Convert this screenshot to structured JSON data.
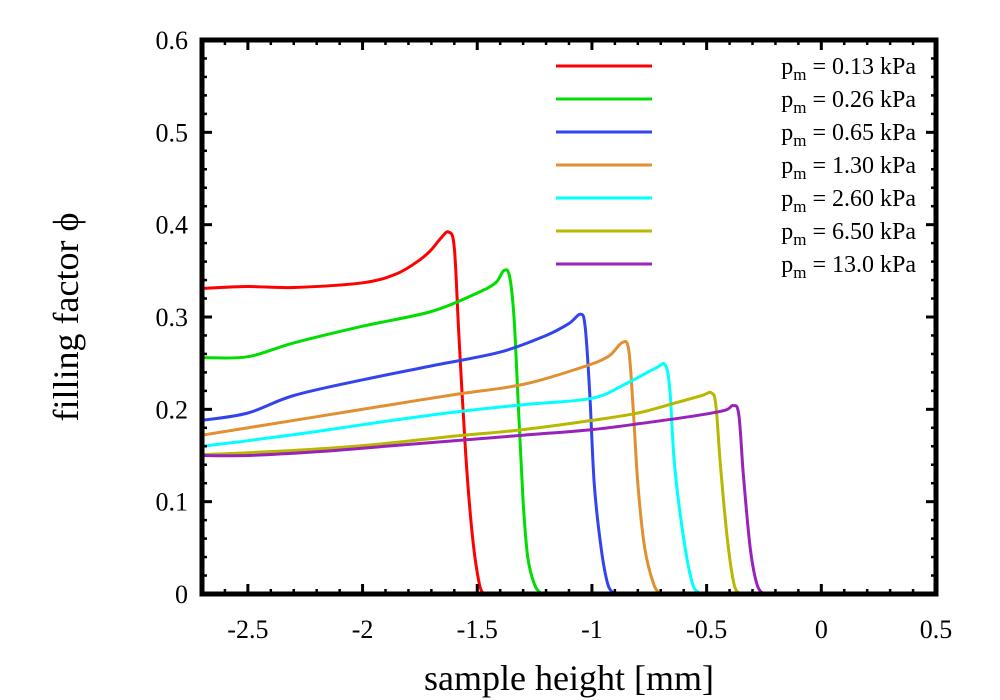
{
  "chart_data": {
    "type": "line",
    "title": "",
    "xlabel": "sample height [mm]",
    "ylabel": "filling factor ϕ",
    "xlim": [
      -2.7,
      0.5
    ],
    "ylim": [
      0,
      0.6
    ],
    "xticks": [
      -2.5,
      -2,
      -1.5,
      -1,
      -0.5,
      0,
      0.5
    ],
    "xtick_labels": [
      "-2.5",
      "-2",
      "-1.5",
      "-1",
      "-0.5",
      "0",
      "0.5"
    ],
    "yticks": [
      0,
      0.1,
      0.2,
      0.3,
      0.4,
      0.5,
      0.6
    ],
    "ytick_labels": [
      "0",
      "0.1",
      "0.2",
      "0.3",
      "0.4",
      "0.5",
      "0.6"
    ],
    "grid": false,
    "legend_position": "top-right",
    "series": [
      {
        "name": "p_m = 0.13 kPa",
        "label_main": "p",
        "label_sub": "m",
        "label_rest": " = 0.13 kPa",
        "color": "#ff0000",
        "x": [
          -2.7,
          -2.5,
          -2.3,
          -2.0,
          -1.85,
          -1.75,
          -1.7,
          -1.66,
          -1.625,
          -1.6,
          -1.58,
          -1.55,
          -1.52,
          -1.49,
          -1.47
        ],
        "y": [
          0.331,
          0.333,
          0.332,
          0.337,
          0.347,
          0.362,
          0.373,
          0.385,
          0.392,
          0.375,
          0.28,
          0.15,
          0.06,
          0.01,
          0
        ]
      },
      {
        "name": "p_m = 0.26 kPa",
        "label_main": "p",
        "label_sub": "m",
        "label_rest": " = 0.26 kPa",
        "color": "#00dd00",
        "x": [
          -2.7,
          -2.5,
          -2.3,
          -2.0,
          -1.7,
          -1.5,
          -1.42,
          -1.385,
          -1.36,
          -1.34,
          -1.32,
          -1.3,
          -1.28,
          -1.25,
          -1.22
        ],
        "y": [
          0.256,
          0.257,
          0.272,
          0.29,
          0.306,
          0.326,
          0.337,
          0.35,
          0.345,
          0.3,
          0.2,
          0.1,
          0.04,
          0.01,
          0
        ]
      },
      {
        "name": "p_m = 0.65 kPa",
        "label_main": "p",
        "label_sub": "m",
        "label_rest": " = 0.65 kPa",
        "color": "#3344ee",
        "x": [
          -2.7,
          -2.5,
          -2.3,
          -2.0,
          -1.7,
          -1.4,
          -1.2,
          -1.1,
          -1.05,
          -1.03,
          -1.01,
          -0.99,
          -0.96,
          -0.93,
          -0.9
        ],
        "y": [
          0.188,
          0.196,
          0.215,
          0.232,
          0.247,
          0.262,
          0.28,
          0.293,
          0.303,
          0.29,
          0.22,
          0.12,
          0.05,
          0.01,
          0
        ]
      },
      {
        "name": "p_m = 1.30 kPa",
        "label_main": "p",
        "label_sub": "m",
        "label_rest": " = 1.30 kPa",
        "color": "#e09030",
        "x": [
          -2.7,
          -2.5,
          -2.2,
          -1.9,
          -1.6,
          -1.3,
          -1.05,
          -0.93,
          -0.87,
          -0.84,
          -0.82,
          -0.8,
          -0.77,
          -0.73,
          -0.7
        ],
        "y": [
          0.172,
          0.18,
          0.192,
          0.204,
          0.216,
          0.227,
          0.245,
          0.257,
          0.272,
          0.265,
          0.2,
          0.12,
          0.05,
          0.01,
          0
        ]
      },
      {
        "name": "p_m = 2.60 kPa",
        "label_main": "p",
        "label_sub": "m",
        "label_rest": " = 2.60 kPa",
        "color": "#00ffff",
        "x": [
          -2.7,
          -2.5,
          -2.2,
          -1.9,
          -1.6,
          -1.3,
          -1.0,
          -0.85,
          -0.72,
          -0.68,
          -0.66,
          -0.64,
          -0.6,
          -0.56,
          -0.52
        ],
        "y": [
          0.16,
          0.166,
          0.176,
          0.187,
          0.197,
          0.205,
          0.212,
          0.228,
          0.245,
          0.248,
          0.22,
          0.14,
          0.06,
          0.01,
          0
        ]
      },
      {
        "name": "p_m = 6.50 kPa",
        "label_main": "p",
        "label_sub": "m",
        "label_rest": " = 6.50 kPa",
        "color": "#b8b800",
        "x": [
          -2.7,
          -2.5,
          -2.2,
          -1.9,
          -1.6,
          -1.3,
          -1.0,
          -0.8,
          -0.65,
          -0.52,
          -0.48,
          -0.46,
          -0.44,
          -0.41,
          -0.38,
          -0.35
        ],
        "y": [
          0.151,
          0.153,
          0.157,
          0.163,
          0.171,
          0.178,
          0.188,
          0.196,
          0.206,
          0.215,
          0.218,
          0.205,
          0.14,
          0.06,
          0.01,
          0
        ]
      },
      {
        "name": "p_m = 13.0 kPa",
        "label_main": "p",
        "label_sub": "m",
        "label_rest": " = 13.0 kPa",
        "color": "#9922bb",
        "x": [
          -2.7,
          -2.5,
          -2.2,
          -1.9,
          -1.6,
          -1.3,
          -1.0,
          -0.75,
          -0.55,
          -0.42,
          -0.385,
          -0.36,
          -0.34,
          -0.31,
          -0.28,
          -0.25
        ],
        "y": [
          0.15,
          0.15,
          0.154,
          0.16,
          0.166,
          0.172,
          0.178,
          0.186,
          0.193,
          0.199,
          0.204,
          0.195,
          0.13,
          0.05,
          0.01,
          0
        ]
      }
    ]
  }
}
